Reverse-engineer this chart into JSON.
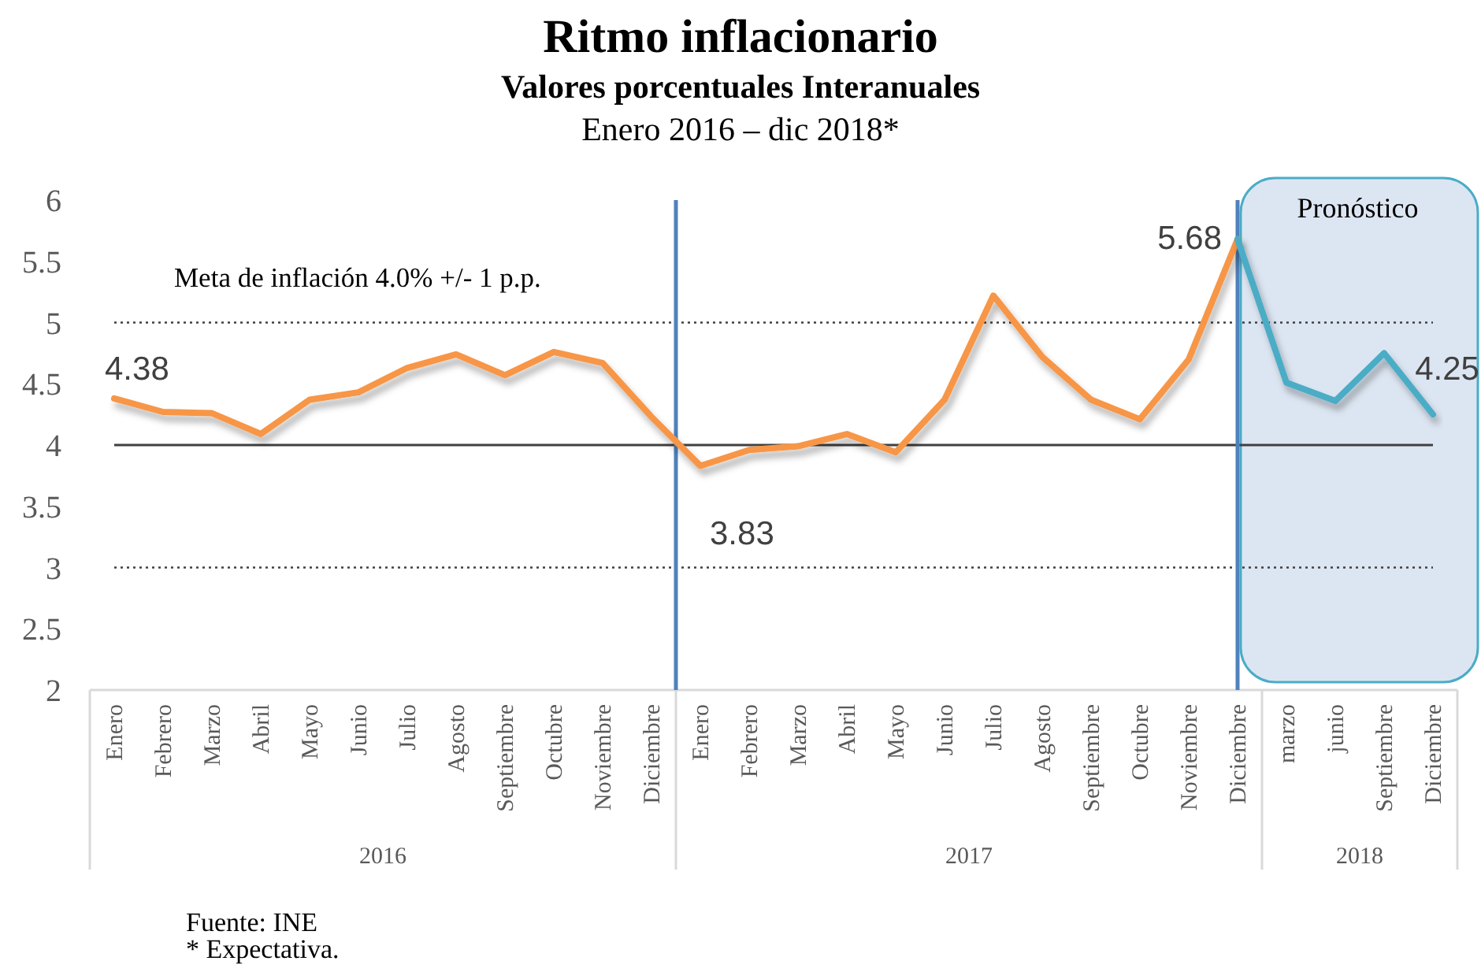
{
  "chart_data": {
    "type": "line",
    "title": "Ritmo inflacionario",
    "subtitle": "Valores porcentuales Interanuales\nEnero 2016 – dic 2018*",
    "categories": [
      "Enero",
      "Febrero",
      "Marzo",
      "Abril",
      "Mayo",
      "Junio",
      "Julio",
      "Agosto",
      "Septiembre",
      "Octubre",
      "Noviembre",
      "Diciembre",
      "Enero",
      "Febrero",
      "Marzo",
      "Abril",
      "Mayo",
      "Junio",
      "Julio",
      "Agosto",
      "Septiembre",
      "Octubre",
      "Noviembre",
      "Diciembre",
      "marzo",
      "junio",
      "Septiembre",
      "Diciembre"
    ],
    "series": [
      {
        "color": "#f79646",
        "values": [
          4.38,
          4.27,
          4.26,
          4.09,
          4.37,
          4.43,
          4.63,
          4.74,
          4.57,
          4.76,
          4.67,
          4.23,
          3.83,
          3.96,
          3.99,
          4.09,
          3.94,
          4.37,
          5.22,
          4.72,
          4.37,
          4.21,
          4.7,
          5.68,
          null,
          null,
          null,
          null
        ],
        "value_labels": [
          "4.38",
          null,
          null,
          null,
          null,
          null,
          null,
          null,
          null,
          null,
          null,
          null,
          "3.83",
          null,
          null,
          null,
          null,
          null,
          null,
          null,
          null,
          null,
          null,
          "5.68",
          null,
          null,
          null,
          null
        ]
      },
      {
        "color": "#4bacc6",
        "values": [
          null,
          null,
          null,
          null,
          null,
          null,
          null,
          null,
          null,
          null,
          null,
          null,
          null,
          null,
          null,
          null,
          null,
          null,
          null,
          null,
          null,
          null,
          null,
          5.68,
          4.51,
          4.36,
          4.75,
          4.25
        ],
        "value_labels": [
          null,
          null,
          null,
          null,
          null,
          null,
          null,
          null,
          null,
          null,
          null,
          null,
          null,
          null,
          null,
          null,
          null,
          null,
          null,
          null,
          null,
          null,
          null,
          null,
          null,
          null,
          null,
          "4.25"
        ]
      }
    ],
    "ylim": [
      2,
      6
    ],
    "yticks": [
      2,
      2.5,
      3,
      3.5,
      4,
      4.5,
      5,
      5.5,
      6
    ],
    "line_style": "solid",
    "ref_lines": [
      {
        "axis": "y",
        "value": 4,
        "color": "#404040",
        "line_style": "solid"
      },
      {
        "axis": "y",
        "value": 5,
        "color": "#404040",
        "line_style": "dotted"
      },
      {
        "axis": "y",
        "value": 3,
        "color": "#404040",
        "line_style": "dotted"
      }
    ],
    "annotations": [
      "Meta de inflación 4.0% +/- 1 p.p.",
      "Pronóstico",
      "2016",
      "2017",
      "2018",
      "Fuente: INE",
      "* Expectativa."
    ]
  }
}
